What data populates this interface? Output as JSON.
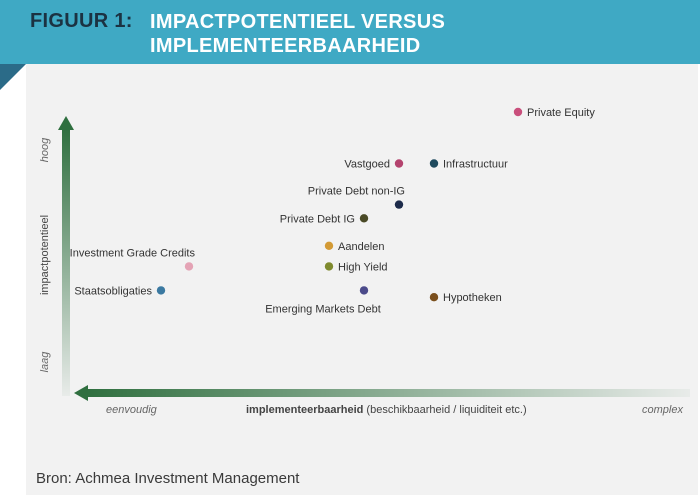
{
  "header": {
    "figure_label": "FIGUUR 1:",
    "title_line1": "IMPACTPOTENTIEEL VERSUS",
    "title_line2": "IMPLEMENTEERBAARHEID"
  },
  "chart_data": {
    "type": "scatter",
    "y_axis": {
      "label": "impactpotentieel",
      "high_label": "hoog",
      "low_label": "laag"
    },
    "x_axis": {
      "label_bold": "implementeerbaarheid",
      "label_rest": " (beschikbaarheid / liquiditeit etc.)",
      "left_label": "eenvoudig",
      "right_label": "complex",
      "direction": "reversed"
    },
    "xlim": [
      0,
      10
    ],
    "ylim": [
      0,
      10
    ],
    "grid": false,
    "points": [
      {
        "name": "Private Equity",
        "x": 7.4,
        "y": 8.6,
        "color": "#c94f7c"
      },
      {
        "name": "Vastgoed",
        "x": 5.7,
        "y": 7.1,
        "color": "#b4436e"
      },
      {
        "name": "Infrastructuur",
        "x": 6.2,
        "y": 7.1,
        "color": "#1f4a5e"
      },
      {
        "name": "Private Debt non-IG",
        "x": 5.7,
        "y": 5.9,
        "color": "#1d2b4a"
      },
      {
        "name": "Private Debt IG",
        "x": 5.2,
        "y": 5.5,
        "color": "#4a4a26"
      },
      {
        "name": "Aandelen",
        "x": 4.7,
        "y": 4.7,
        "color": "#d39a35"
      },
      {
        "name": "High Yield",
        "x": 4.7,
        "y": 4.1,
        "color": "#7f8a2e"
      },
      {
        "name": "Investment Grade Credits",
        "x": 2.7,
        "y": 4.1,
        "color": "#e4a3b5"
      },
      {
        "name": "Staatsobligaties",
        "x": 2.3,
        "y": 3.4,
        "color": "#3b79a1"
      },
      {
        "name": "Emerging Markets Debt",
        "x": 5.2,
        "y": 3.4,
        "color": "#4b4a8a"
      },
      {
        "name": "Hypotheken",
        "x": 6.2,
        "y": 3.2,
        "color": "#7a4f1d"
      }
    ]
  },
  "source": "Bron: Achmea Investment Management"
}
